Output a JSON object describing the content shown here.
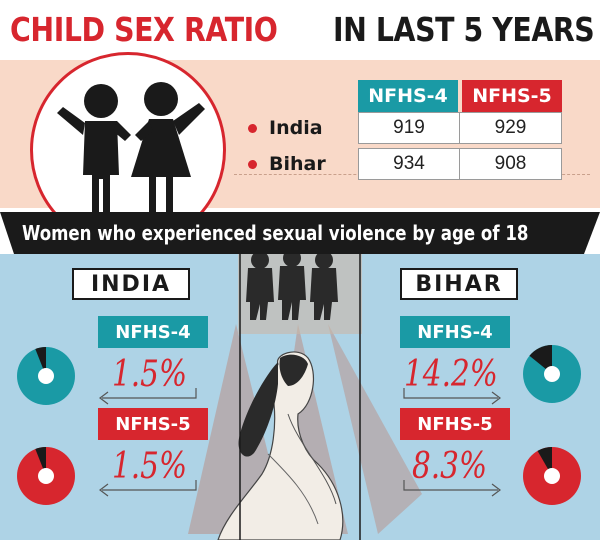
{
  "title": {
    "part1": "CHILD SEX RATIO",
    "part2": "IN LAST 5 YEARS"
  },
  "table": {
    "headers": [
      "NFHS-4",
      "NFHS-5"
    ],
    "rows": [
      {
        "label": "India",
        "values": [
          "919",
          "929"
        ]
      },
      {
        "label": "Bihar",
        "values": [
          "934",
          "908"
        ]
      }
    ]
  },
  "banner": "Women who experienced sexual violence by age of 18",
  "india": {
    "label": "INDIA",
    "nfhs4": {
      "tag": "NFHS-4",
      "value": "1.5%",
      "fraction": 0.015
    },
    "nfhs5": {
      "tag": "NFHS-5",
      "value": "1.5%",
      "fraction": 0.015
    }
  },
  "bihar": {
    "label": "BIHAR",
    "nfhs4": {
      "tag": "NFHS-4",
      "value": "14.2%",
      "fraction": 0.142
    },
    "nfhs5": {
      "tag": "NFHS-5",
      "value": "8.3%",
      "fraction": 0.083
    }
  },
  "colors": {
    "red": "#d7262e",
    "teal": "#1a9aa5",
    "peach": "#f9d9c8",
    "lightblue": "#aed3e6",
    "dark": "#1a1a1a"
  }
}
